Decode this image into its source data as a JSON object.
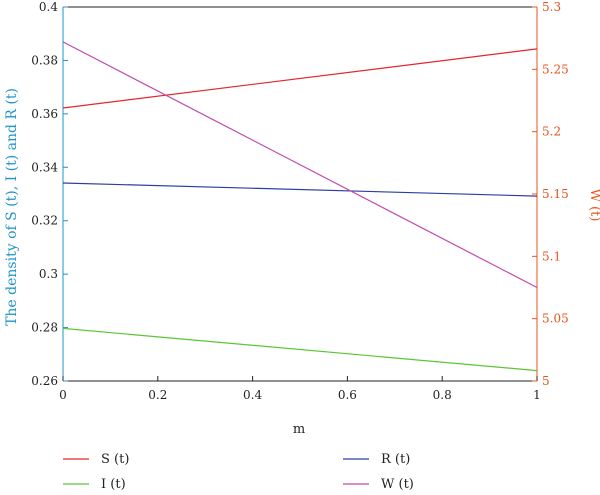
{
  "chart_data": {
    "type": "line",
    "xlabel": "m",
    "ylabel_left": "The density of S (t), I (t) and R (t)",
    "ylabel_right": "W (t)",
    "x": [
      0,
      1
    ],
    "xlim": [
      0,
      1
    ],
    "xticks": [
      "0",
      "0.2",
      "0.4",
      "0.6",
      "0.8",
      "1"
    ],
    "ylim_left": [
      0.26,
      0.4
    ],
    "yticks_left": [
      "0.26",
      "0.28",
      "0.3",
      "0.32",
      "0.34",
      "0.36",
      "0.38",
      "0.4"
    ],
    "ylim_right": [
      5.0,
      5.3
    ],
    "yticks_right": [
      "5",
      "5.05",
      "5.1",
      "5.15",
      "5.2",
      "5.25",
      "5.3"
    ],
    "series": [
      {
        "name": "S (t)",
        "axis": "left",
        "color": "#e8242a",
        "values": [
          0.3622,
          0.3843
        ]
      },
      {
        "name": "I (t)",
        "axis": "left",
        "color": "#5cc634",
        "values": [
          0.2797,
          0.2639
        ]
      },
      {
        "name": "R (t)",
        "axis": "left",
        "color": "#2c3fa0",
        "values": [
          0.3341,
          0.3292
        ]
      },
      {
        "name": "W (t)",
        "axis": "right",
        "color": "#c24aad",
        "values": [
          5.272,
          5.075
        ]
      }
    ],
    "legend_position": "bottom",
    "grid": false,
    "axis_colors": {
      "left": "#1f93c8",
      "right": "#e8541d"
    }
  }
}
